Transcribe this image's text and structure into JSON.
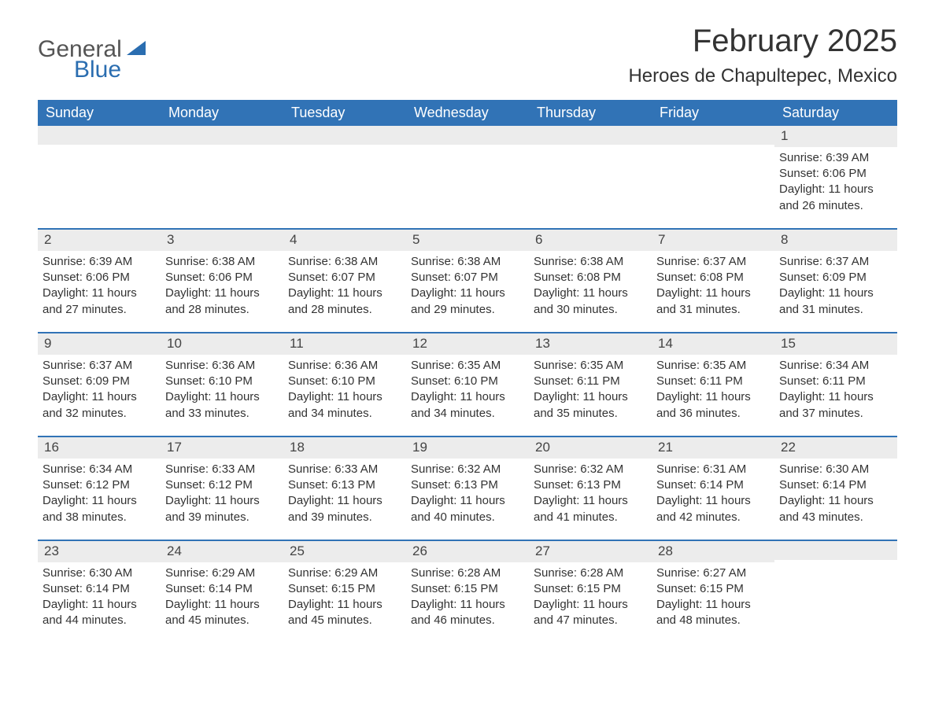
{
  "logo": {
    "word1": "General",
    "word2": "Blue"
  },
  "title": "February 2025",
  "location": "Heroes de Chapultepec, Mexico",
  "colors": {
    "header_bg": "#3173b6",
    "header_text": "#ffffff",
    "row_divider": "#3173b6",
    "daynum_bg": "#ececec",
    "body_text": "#333333",
    "logo_accent": "#2a6db0",
    "page_bg": "#ffffff"
  },
  "typography": {
    "title_fontsize": 40,
    "location_fontsize": 24,
    "dow_fontsize": 18,
    "body_fontsize": 15
  },
  "day_names": [
    "Sunday",
    "Monday",
    "Tuesday",
    "Wednesday",
    "Thursday",
    "Friday",
    "Saturday"
  ],
  "weeks": [
    [
      null,
      null,
      null,
      null,
      null,
      null,
      {
        "n": "1",
        "sunrise": "Sunrise: 6:39 AM",
        "sunset": "Sunset: 6:06 PM",
        "dl1": "Daylight: 11 hours",
        "dl2": "and 26 minutes."
      }
    ],
    [
      {
        "n": "2",
        "sunrise": "Sunrise: 6:39 AM",
        "sunset": "Sunset: 6:06 PM",
        "dl1": "Daylight: 11 hours",
        "dl2": "and 27 minutes."
      },
      {
        "n": "3",
        "sunrise": "Sunrise: 6:38 AM",
        "sunset": "Sunset: 6:06 PM",
        "dl1": "Daylight: 11 hours",
        "dl2": "and 28 minutes."
      },
      {
        "n": "4",
        "sunrise": "Sunrise: 6:38 AM",
        "sunset": "Sunset: 6:07 PM",
        "dl1": "Daylight: 11 hours",
        "dl2": "and 28 minutes."
      },
      {
        "n": "5",
        "sunrise": "Sunrise: 6:38 AM",
        "sunset": "Sunset: 6:07 PM",
        "dl1": "Daylight: 11 hours",
        "dl2": "and 29 minutes."
      },
      {
        "n": "6",
        "sunrise": "Sunrise: 6:38 AM",
        "sunset": "Sunset: 6:08 PM",
        "dl1": "Daylight: 11 hours",
        "dl2": "and 30 minutes."
      },
      {
        "n": "7",
        "sunrise": "Sunrise: 6:37 AM",
        "sunset": "Sunset: 6:08 PM",
        "dl1": "Daylight: 11 hours",
        "dl2": "and 31 minutes."
      },
      {
        "n": "8",
        "sunrise": "Sunrise: 6:37 AM",
        "sunset": "Sunset: 6:09 PM",
        "dl1": "Daylight: 11 hours",
        "dl2": "and 31 minutes."
      }
    ],
    [
      {
        "n": "9",
        "sunrise": "Sunrise: 6:37 AM",
        "sunset": "Sunset: 6:09 PM",
        "dl1": "Daylight: 11 hours",
        "dl2": "and 32 minutes."
      },
      {
        "n": "10",
        "sunrise": "Sunrise: 6:36 AM",
        "sunset": "Sunset: 6:10 PM",
        "dl1": "Daylight: 11 hours",
        "dl2": "and 33 minutes."
      },
      {
        "n": "11",
        "sunrise": "Sunrise: 6:36 AM",
        "sunset": "Sunset: 6:10 PM",
        "dl1": "Daylight: 11 hours",
        "dl2": "and 34 minutes."
      },
      {
        "n": "12",
        "sunrise": "Sunrise: 6:35 AM",
        "sunset": "Sunset: 6:10 PM",
        "dl1": "Daylight: 11 hours",
        "dl2": "and 34 minutes."
      },
      {
        "n": "13",
        "sunrise": "Sunrise: 6:35 AM",
        "sunset": "Sunset: 6:11 PM",
        "dl1": "Daylight: 11 hours",
        "dl2": "and 35 minutes."
      },
      {
        "n": "14",
        "sunrise": "Sunrise: 6:35 AM",
        "sunset": "Sunset: 6:11 PM",
        "dl1": "Daylight: 11 hours",
        "dl2": "and 36 minutes."
      },
      {
        "n": "15",
        "sunrise": "Sunrise: 6:34 AM",
        "sunset": "Sunset: 6:11 PM",
        "dl1": "Daylight: 11 hours",
        "dl2": "and 37 minutes."
      }
    ],
    [
      {
        "n": "16",
        "sunrise": "Sunrise: 6:34 AM",
        "sunset": "Sunset: 6:12 PM",
        "dl1": "Daylight: 11 hours",
        "dl2": "and 38 minutes."
      },
      {
        "n": "17",
        "sunrise": "Sunrise: 6:33 AM",
        "sunset": "Sunset: 6:12 PM",
        "dl1": "Daylight: 11 hours",
        "dl2": "and 39 minutes."
      },
      {
        "n": "18",
        "sunrise": "Sunrise: 6:33 AM",
        "sunset": "Sunset: 6:13 PM",
        "dl1": "Daylight: 11 hours",
        "dl2": "and 39 minutes."
      },
      {
        "n": "19",
        "sunrise": "Sunrise: 6:32 AM",
        "sunset": "Sunset: 6:13 PM",
        "dl1": "Daylight: 11 hours",
        "dl2": "and 40 minutes."
      },
      {
        "n": "20",
        "sunrise": "Sunrise: 6:32 AM",
        "sunset": "Sunset: 6:13 PM",
        "dl1": "Daylight: 11 hours",
        "dl2": "and 41 minutes."
      },
      {
        "n": "21",
        "sunrise": "Sunrise: 6:31 AM",
        "sunset": "Sunset: 6:14 PM",
        "dl1": "Daylight: 11 hours",
        "dl2": "and 42 minutes."
      },
      {
        "n": "22",
        "sunrise": "Sunrise: 6:30 AM",
        "sunset": "Sunset: 6:14 PM",
        "dl1": "Daylight: 11 hours",
        "dl2": "and 43 minutes."
      }
    ],
    [
      {
        "n": "23",
        "sunrise": "Sunrise: 6:30 AM",
        "sunset": "Sunset: 6:14 PM",
        "dl1": "Daylight: 11 hours",
        "dl2": "and 44 minutes."
      },
      {
        "n": "24",
        "sunrise": "Sunrise: 6:29 AM",
        "sunset": "Sunset: 6:14 PM",
        "dl1": "Daylight: 11 hours",
        "dl2": "and 45 minutes."
      },
      {
        "n": "25",
        "sunrise": "Sunrise: 6:29 AM",
        "sunset": "Sunset: 6:15 PM",
        "dl1": "Daylight: 11 hours",
        "dl2": "and 45 minutes."
      },
      {
        "n": "26",
        "sunrise": "Sunrise: 6:28 AM",
        "sunset": "Sunset: 6:15 PM",
        "dl1": "Daylight: 11 hours",
        "dl2": "and 46 minutes."
      },
      {
        "n": "27",
        "sunrise": "Sunrise: 6:28 AM",
        "sunset": "Sunset: 6:15 PM",
        "dl1": "Daylight: 11 hours",
        "dl2": "and 47 minutes."
      },
      {
        "n": "28",
        "sunrise": "Sunrise: 6:27 AM",
        "sunset": "Sunset: 6:15 PM",
        "dl1": "Daylight: 11 hours",
        "dl2": "and 48 minutes."
      },
      null
    ]
  ]
}
